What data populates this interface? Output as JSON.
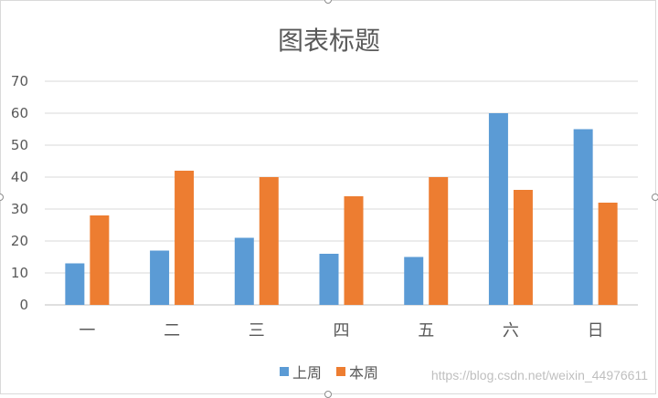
{
  "chart_data": {
    "type": "bar",
    "title": "图表标题",
    "categories": [
      "一",
      "二",
      "三",
      "四",
      "五",
      "六",
      "日"
    ],
    "series": [
      {
        "name": "上周",
        "color": "#5b9bd5",
        "values": [
          13,
          17,
          21,
          16,
          15,
          60,
          55
        ]
      },
      {
        "name": "本周",
        "color": "#ed7d31",
        "values": [
          28,
          42,
          40,
          34,
          40,
          36,
          32
        ]
      }
    ],
    "ylim": [
      0,
      70
    ],
    "yticks": [
      0,
      10,
      20,
      30,
      40,
      50,
      60,
      70
    ],
    "grid": true,
    "legend_position": "bottom"
  },
  "watermark": "https://blog.csdn.net/weixin_44976611"
}
